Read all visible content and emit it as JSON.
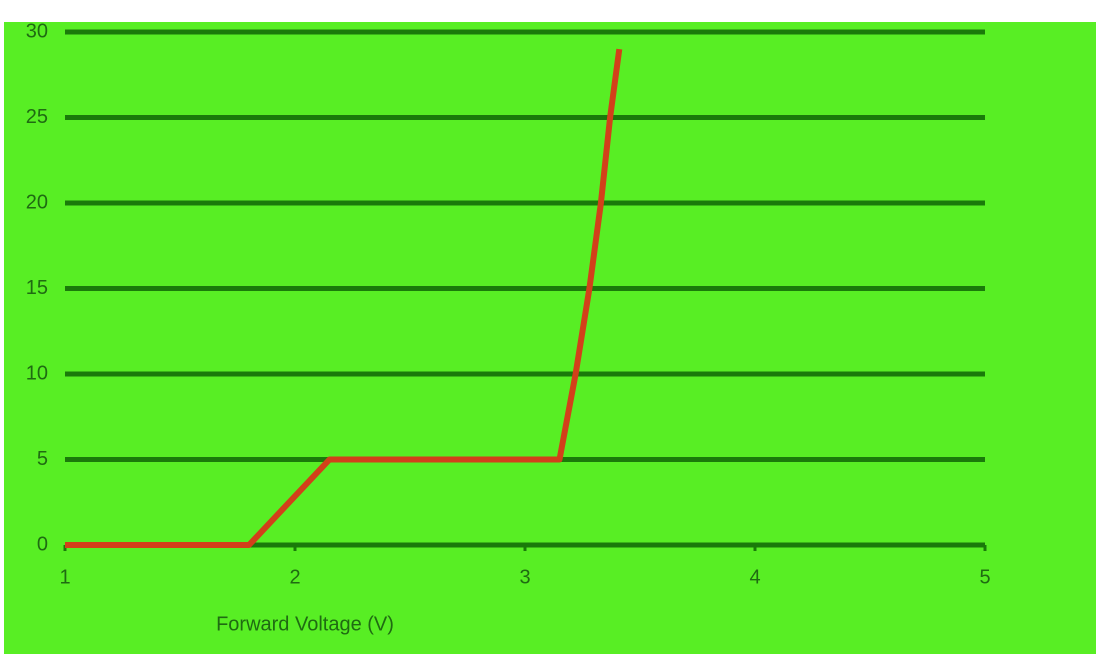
{
  "chart_data": {
    "type": "line",
    "x_label": "Forward Voltage (V)",
    "x": [
      1.0,
      1.8,
      2.15,
      3.15,
      3.22,
      3.28,
      3.33,
      3.37,
      3.41
    ],
    "values": [
      0,
      0,
      5,
      5,
      10,
      15,
      20,
      25,
      29
    ],
    "color": "#d2401a",
    "xlim": [
      1,
      5
    ],
    "xticks": [
      1,
      2,
      3,
      4,
      5
    ],
    "ylim": [
      0,
      30
    ],
    "yticks": [
      0,
      5,
      10,
      15,
      20,
      25,
      30
    ],
    "grid": true
  }
}
